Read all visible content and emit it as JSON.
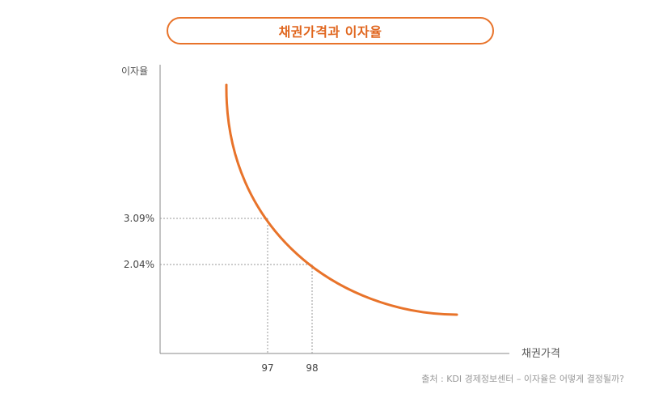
{
  "title": "채권가격과 이자율",
  "source": "출처 : KDI 경제정보센터 – 이자율은 어떻게 결정될까?",
  "colors": {
    "accent": "#E8732A",
    "axis": "#888888",
    "guide": "#999999"
  },
  "chart_data": {
    "type": "line",
    "title": "채권가격과 이자율",
    "xlabel": "채권가격",
    "ylabel": "이자율",
    "x_ticks": [
      "97",
      "98"
    ],
    "y_ticks": [
      "3.09%",
      "2.04%"
    ],
    "annotated_points": [
      {
        "x": 97,
        "y": 3.09
      },
      {
        "x": 98,
        "y": 2.04
      }
    ],
    "grid": false,
    "legend": "none"
  }
}
